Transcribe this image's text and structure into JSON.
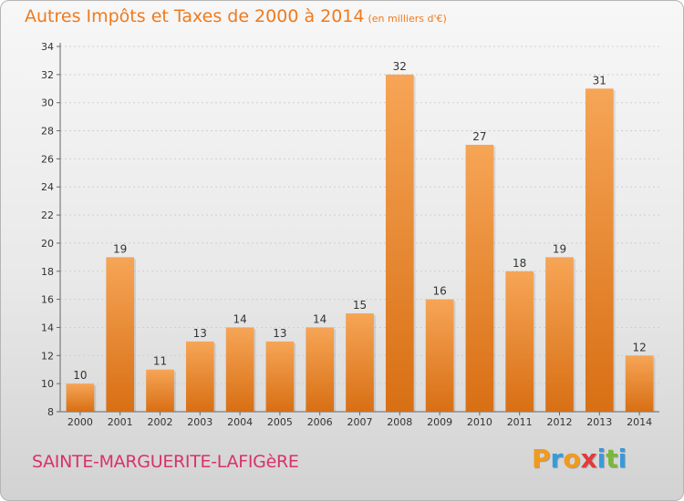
{
  "chart_data": {
    "type": "bar",
    "title": "Autres Impôts et Taxes de 2000 à 2014",
    "subtitle": "(en milliers d'€)",
    "categories": [
      "2000",
      "2001",
      "2002",
      "2003",
      "2004",
      "2005",
      "2006",
      "2007",
      "2008",
      "2009",
      "2010",
      "2011",
      "2012",
      "2013",
      "2014"
    ],
    "values": [
      10,
      19,
      11,
      13,
      14,
      13,
      14,
      15,
      32,
      16,
      27,
      18,
      19,
      31,
      12
    ],
    "ylim": [
      8,
      34
    ],
    "yticks": [
      8,
      10,
      12,
      14,
      16,
      18,
      20,
      22,
      24,
      26,
      28,
      30,
      32,
      34
    ],
    "grid": true,
    "bar_color": "#f0912f",
    "xlabel": "",
    "ylabel": ""
  },
  "footer": {
    "location": "SAINTE-MARGUERITE-LAFIGèRE",
    "brand_letters": [
      "P",
      "r",
      "o",
      "x",
      "i",
      "t",
      "i"
    ],
    "brand_colors": [
      "#f29a1c",
      "#3a9ad9",
      "#f29a1c",
      "#e23a3a",
      "#3a9ad9",
      "#7ab83a",
      "#3a9ad9"
    ]
  }
}
